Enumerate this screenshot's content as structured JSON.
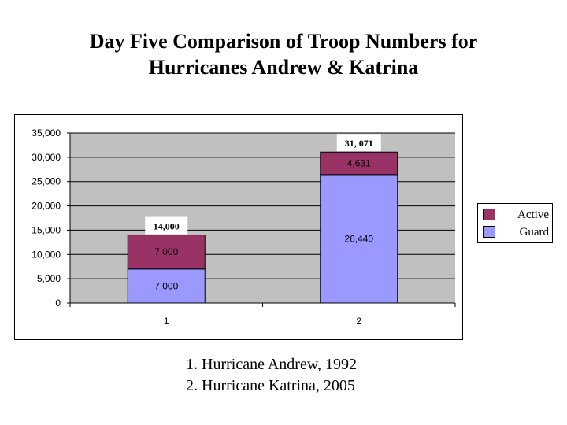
{
  "title": {
    "line1": "Day Five Comparison of Troop Numbers for",
    "line2": "Hurricanes Andrew & Katrina"
  },
  "colors": {
    "active": "#993366",
    "guard": "#9999ff",
    "plot_background": "#c0c0c0",
    "gridline": "#000000"
  },
  "legend": {
    "placement": "right",
    "items": [
      {
        "label": "Active",
        "color": "#993366"
      },
      {
        "label": "Guard",
        "color": "#9999ff"
      }
    ]
  },
  "caption": {
    "line1": "1. Hurricane Andrew, 1992",
    "line2": "2. Hurricane Katrina, 2005"
  },
  "chart_data": {
    "type": "bar",
    "stacked": true,
    "categories": [
      "1",
      "2"
    ],
    "series": [
      {
        "name": "Guard",
        "values": [
          7000,
          26440
        ],
        "labels": [
          "7,000",
          "26,440"
        ]
      },
      {
        "name": "Active",
        "values": [
          7000,
          4631
        ],
        "labels": [
          "7,000",
          "4,631"
        ]
      }
    ],
    "totals": [
      14000,
      31071
    ],
    "total_labels": [
      "14,000",
      "31, 071"
    ],
    "ylim": [
      0,
      35000
    ],
    "yticks": [
      0,
      5000,
      10000,
      15000,
      20000,
      25000,
      30000,
      35000
    ],
    "ytick_labels": [
      "0",
      "5,000",
      "10,000",
      "15,000",
      "20,000",
      "25,000",
      "30,000",
      "35,000"
    ],
    "grid": true
  }
}
